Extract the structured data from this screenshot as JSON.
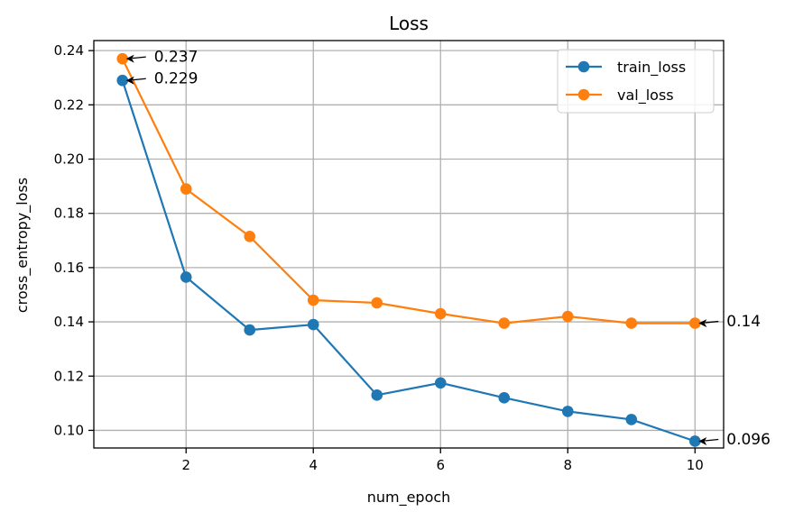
{
  "chart_data": {
    "type": "line",
    "title": "Loss",
    "xlabel": "num_epoch",
    "ylabel": "cross_entropy_loss",
    "x": [
      1,
      2,
      3,
      4,
      5,
      6,
      7,
      8,
      9,
      10
    ],
    "xlim": [
      0.55,
      10.45
    ],
    "ylim": [
      0.0935,
      0.2437
    ],
    "xticks": [
      2,
      4,
      6,
      8,
      10
    ],
    "yticks": [
      0.1,
      0.12,
      0.14,
      0.16,
      0.18,
      0.2,
      0.22,
      0.24
    ],
    "xtick_labels": [
      "2",
      "4",
      "6",
      "8",
      "10"
    ],
    "ytick_labels": [
      "0.10",
      "0.12",
      "0.14",
      "0.16",
      "0.18",
      "0.20",
      "0.22",
      "0.24"
    ],
    "grid": true,
    "legend_position": "top-right",
    "series": [
      {
        "name": "train_loss",
        "color": "#1f77b4",
        "values": [
          0.229,
          0.1565,
          0.137,
          0.139,
          0.113,
          0.1175,
          0.112,
          0.107,
          0.104,
          0.096
        ]
      },
      {
        "name": "val_loss",
        "color": "#ff7f0e",
        "values": [
          0.237,
          0.189,
          0.1715,
          0.148,
          0.147,
          0.143,
          0.1395,
          0.142,
          0.1395,
          0.1395
        ]
      }
    ],
    "annotations": [
      {
        "text": "0.237",
        "x": 1,
        "y": 0.237
      },
      {
        "text": "0.229",
        "x": 1,
        "y": 0.229
      },
      {
        "text": "0.14",
        "x": 10,
        "y": 0.1395
      },
      {
        "text": "0.096",
        "x": 10,
        "y": 0.096
      }
    ]
  }
}
